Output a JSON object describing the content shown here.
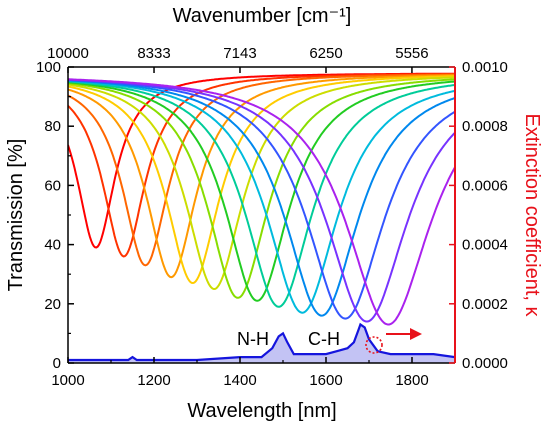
{
  "chart_data": {
    "type": "line",
    "xlabel": "Wavelength [nm]",
    "x2label": "Wavenumber [cm⁻¹]",
    "ylabel": "Transmission [%]",
    "y2label": "Extinction coefficient, κ",
    "xlim": [
      1000,
      1900
    ],
    "ylim": [
      0,
      100
    ],
    "y2lim": [
      0,
      0.001
    ],
    "x_ticks": [
      "1000",
      "1200",
      "1400",
      "1600",
      "1800"
    ],
    "y_ticks": [
      "0",
      "20",
      "40",
      "60",
      "80",
      "100"
    ],
    "y2_ticks": [
      "0.0000",
      "0.0002",
      "0.0004",
      "0.0006",
      "0.0008",
      "0.0010"
    ],
    "x2_ticks": [
      "10000",
      "8333",
      "7143",
      "6250",
      "5556"
    ],
    "grid": false,
    "transmission_series": [
      {
        "color": "#ff0000",
        "min_x": 1065,
        "min_y": 39
      },
      {
        "color": "#ff3300",
        "min_x": 1130,
        "min_y": 36
      },
      {
        "color": "#ff6600",
        "min_x": 1180,
        "min_y": 33
      },
      {
        "color": "#ff9900",
        "min_x": 1240,
        "min_y": 29
      },
      {
        "color": "#ffcc00",
        "min_x": 1290,
        "min_y": 27
      },
      {
        "color": "#ccdd00",
        "min_x": 1340,
        "min_y": 25
      },
      {
        "color": "#88dd00",
        "min_x": 1395,
        "min_y": 22
      },
      {
        "color": "#22cc22",
        "min_x": 1440,
        "min_y": 21
      },
      {
        "color": "#00cc99",
        "min_x": 1490,
        "min_y": 19
      },
      {
        "color": "#00bbdd",
        "min_x": 1545,
        "min_y": 17
      },
      {
        "color": "#0088ee",
        "min_x": 1590,
        "min_y": 16
      },
      {
        "color": "#3355ff",
        "min_x": 1645,
        "min_y": 15
      },
      {
        "color": "#7733ff",
        "min_x": 1695,
        "min_y": 14
      },
      {
        "color": "#aa22ee",
        "min_x": 1745,
        "min_y": 13
      }
    ],
    "extinction_series": {
      "color": "#1515dd",
      "x": [
        1000,
        1100,
        1140,
        1150,
        1160,
        1200,
        1300,
        1400,
        1450,
        1475,
        1490,
        1500,
        1510,
        1525,
        1550,
        1600,
        1625,
        1650,
        1665,
        1675,
        1680,
        1690,
        1700,
        1720,
        1750,
        1800,
        1850,
        1900
      ],
      "y": [
        1e-05,
        1e-05,
        1e-05,
        2e-05,
        1e-05,
        1e-05,
        1e-05,
        2e-05,
        2e-05,
        5e-05,
        9e-05,
        0.0001,
        7e-05,
        3e-05,
        3e-05,
        3e-05,
        4e-05,
        5e-05,
        7e-05,
        0.00011,
        0.00013,
        0.00012,
        8e-05,
        4e-05,
        3e-05,
        3e-05,
        3e-05,
        2e-05
      ]
    },
    "annotations": [
      "N-H",
      "C-H"
    ]
  }
}
